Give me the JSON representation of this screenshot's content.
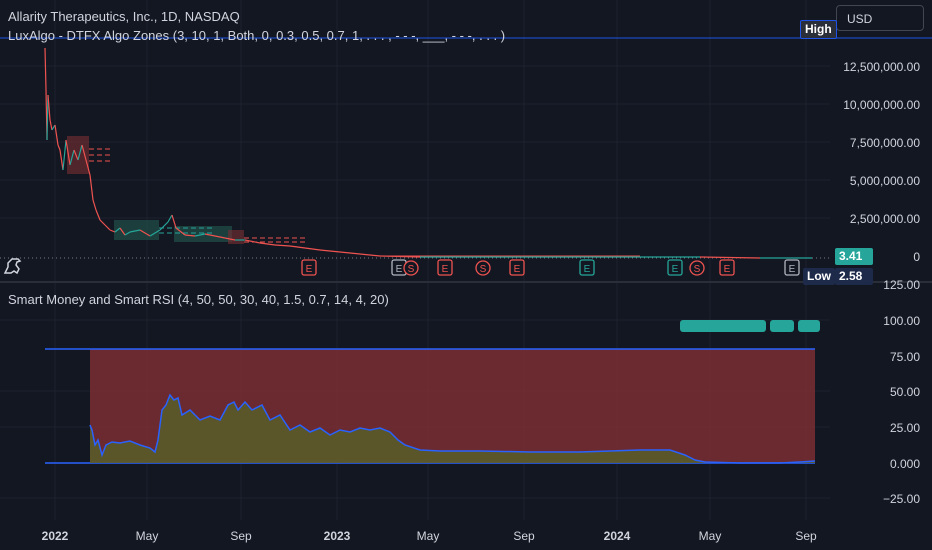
{
  "legend": {
    "symbol_line": "Allarity Therapeutics, Inc., 1D, NASDAQ",
    "indicator_line": "LuxAlgo - DTFX Algo Zones (3, 10, 1, Both, 0, 0.3, 0.5, 0.7, 1, . . . , - - -, ___, - - -, . . . )",
    "lower_line": "Smart Money and Smart RSI (4, 50, 50, 30, 40, 1.5, 0.7, 14, 4, 20)"
  },
  "currency": {
    "label": "USD"
  },
  "tags": {
    "high": "High",
    "low": "Low",
    "last_price": "3.41",
    "low_value": "2.58"
  },
  "price_axis": [
    "12,500,000.00",
    "10,000,000.00",
    "7,500,000.00",
    "5,000,000.00",
    "2,500,000.00",
    "0"
  ],
  "lower_axis": [
    "125.00",
    "100.00",
    "75.00",
    "50.00",
    "25.00",
    "0.000",
    "−25.00"
  ],
  "time_axis": [
    {
      "label": "2022",
      "bold": true
    },
    {
      "label": "May",
      "bold": false
    },
    {
      "label": "Sep",
      "bold": false
    },
    {
      "label": "2023",
      "bold": true
    },
    {
      "label": "May",
      "bold": false
    },
    {
      "label": "Sep",
      "bold": false
    },
    {
      "label": "2024",
      "bold": true
    },
    {
      "label": "May",
      "bold": false
    },
    {
      "label": "Sep",
      "bold": false
    }
  ],
  "earnings_markers": [
    {
      "label": "E",
      "color": "#ef5350"
    },
    {
      "label": "E",
      "color": "#b2b5be"
    },
    {
      "label": "S",
      "color": "#ef5350"
    },
    {
      "label": "E",
      "color": "#ef5350"
    },
    {
      "label": "S",
      "color": "#ef5350"
    },
    {
      "label": "E",
      "color": "#ef5350"
    },
    {
      "label": "E",
      "color": "#26a69a"
    },
    {
      "label": "E",
      "color": "#26a69a"
    },
    {
      "label": "S",
      "color": "#ef5350"
    },
    {
      "label": "E",
      "color": "#ef5350"
    },
    {
      "label": "E",
      "color": "#b2b5be"
    }
  ],
  "colors": {
    "background": "#131722",
    "up": "#26a69a",
    "down": "#ef5350",
    "rsi_line": "#2962ff",
    "zone_red": "#7a2e33",
    "zone_olive": "#5a5a2a",
    "band_line": "#2962ff"
  }
}
